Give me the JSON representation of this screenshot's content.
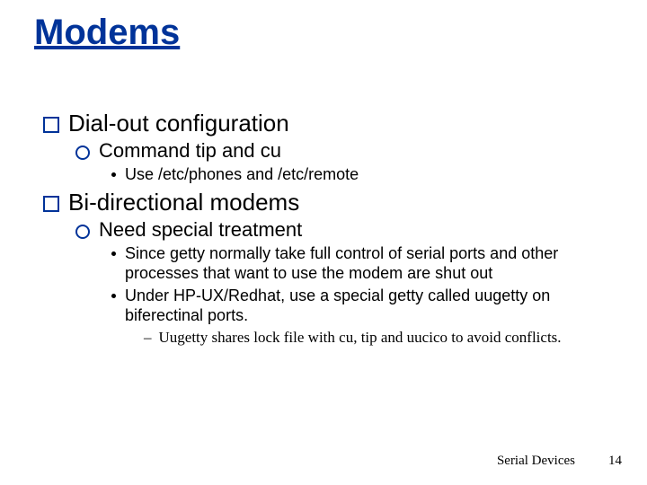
{
  "title": "Modems",
  "colors": {
    "title": "#003399",
    "bullet_outline": "#003399",
    "text": "#000000",
    "background": "#ffffff"
  },
  "typography": {
    "title_fontsize": 40,
    "lvl1_fontsize": 26,
    "lvl2_fontsize": 22,
    "lvl3_fontsize": 18,
    "lvl4_fontsize": 17,
    "body_font": "Comic Sans MS",
    "lvl4_font": "Times New Roman"
  },
  "content": {
    "sec1": {
      "heading": "Dial-out configuration",
      "sub1": {
        "text": "Command tip and cu",
        "detail": "Use /etc/phones and /etc/remote"
      }
    },
    "sec2": {
      "heading": "Bi-directional modems",
      "sub1": {
        "text": "Need special treatment",
        "detail1": "Since getty normally take full control of serial ports and other processes that want to use the modem are shut out",
        "detail2": "Under HP-UX/Redhat, use a special getty called uugetty on biferectinal ports.",
        "sub": "Uugetty shares lock file with cu, tip and uucico to avoid conflicts."
      }
    }
  },
  "footer": {
    "label": "Serial Devices",
    "page": "14"
  }
}
